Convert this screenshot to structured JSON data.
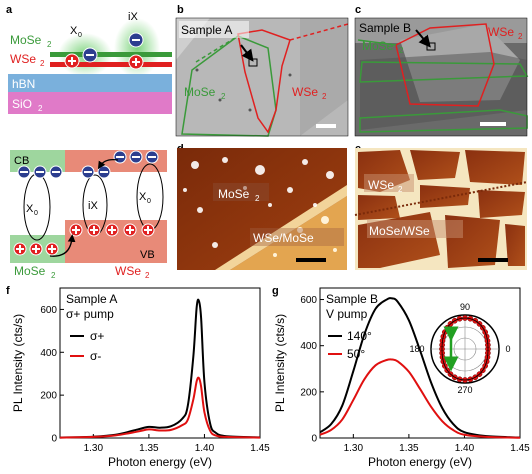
{
  "colors": {
    "mose2": "#3a9a3a",
    "wse2": "#e02020",
    "hbn": "#7ab0dc",
    "sio2": "#e07ac8",
    "cb_green": "#9ed69e",
    "cb_red": "#e88a78",
    "electron": "#2c3e8f",
    "hole": "#e02020",
    "sigma_plus": "#000000",
    "sigma_minus": "#e01010",
    "pol_140": "#000000",
    "pol_50": "#e01010"
  },
  "panel_a": {
    "letter": "a",
    "labels": {
      "mose2_top": "MoSe",
      "wse2_top": "WSe",
      "x0": "X",
      "ix": "iX",
      "hbn": "hBN",
      "sio2": "SiO",
      "cb": "CB",
      "vb": "VB",
      "x0_left": "X",
      "ix_mid": "iX",
      "x0_right": "X",
      "mose2_bottom": "MoSe",
      "wse2_bottom": "WSe"
    }
  },
  "panel_b": {
    "letter": "b",
    "sample": "Sample A",
    "mose2": "MoSe",
    "wse2": "WSe"
  },
  "panel_c": {
    "letter": "c",
    "sample": "Sample B",
    "mose2": "MoSe",
    "wse2": "WSe"
  },
  "panel_d": {
    "letter": "d",
    "mose2": "MoSe",
    "hetero": "WSe/MoSe"
  },
  "panel_e": {
    "letter": "e",
    "wse2": "WSe",
    "hetero": "MoSe/WSe"
  },
  "panel_f": {
    "letter": "f"
  },
  "panel_g": {
    "letter": "g"
  },
  "chart_data": [
    {
      "type": "line",
      "panel": "f",
      "annotations": [
        "Sample A",
        "σ+ pump"
      ],
      "xlabel": "Photon energy (eV)",
      "ylabel": "PL Intensity (cts/s)",
      "xlim": [
        1.27,
        1.45
      ],
      "ylim": [
        0,
        700
      ],
      "xticks": [
        1.3,
        1.35,
        1.4,
        1.45
      ],
      "yticks": [
        0,
        200,
        400,
        600
      ],
      "legend": "top-left",
      "series": [
        {
          "name": "σ+",
          "color": "#000000",
          "peak": 640,
          "x": [
            1.27,
            1.3,
            1.32,
            1.34,
            1.35,
            1.36,
            1.37,
            1.38,
            1.385,
            1.39,
            1.393,
            1.395,
            1.397,
            1.4,
            1.405,
            1.41,
            1.42,
            1.45
          ],
          "y": [
            2,
            6,
            15,
            40,
            52,
            48,
            55,
            90,
            150,
            380,
            610,
            640,
            560,
            260,
            70,
            25,
            8,
            3
          ]
        },
        {
          "name": "σ-",
          "color": "#e01010",
          "peak": 280,
          "x": [
            1.27,
            1.3,
            1.32,
            1.34,
            1.35,
            1.36,
            1.37,
            1.38,
            1.385,
            1.39,
            1.393,
            1.395,
            1.397,
            1.4,
            1.405,
            1.41,
            1.42,
            1.45
          ],
          "y": [
            2,
            5,
            12,
            30,
            40,
            35,
            38,
            60,
            85,
            180,
            265,
            280,
            240,
            120,
            35,
            12,
            5,
            2
          ]
        }
      ]
    },
    {
      "type": "line",
      "panel": "g",
      "annotations": [
        "Sample B",
        "V pump"
      ],
      "xlabel": "Photon energy (eV)",
      "ylabel": "PL Intensity (cts/s)",
      "xlim": [
        1.27,
        1.45
      ],
      "ylim": [
        0,
        650
      ],
      "xticks": [
        1.3,
        1.35,
        1.4,
        1.45
      ],
      "yticks": [
        0,
        200,
        400,
        600
      ],
      "legend": "top-left",
      "series": [
        {
          "name": "140°",
          "color": "#000000",
          "x": [
            1.27,
            1.28,
            1.29,
            1.3,
            1.31,
            1.32,
            1.33,
            1.335,
            1.34,
            1.35,
            1.36,
            1.37,
            1.38,
            1.39,
            1.4,
            1.42,
            1.45
          ],
          "y": [
            25,
            60,
            140,
            290,
            450,
            560,
            600,
            605,
            590,
            510,
            380,
            240,
            130,
            60,
            25,
            8,
            2
          ]
        },
        {
          "name": "50°",
          "color": "#e01010",
          "x": [
            1.27,
            1.28,
            1.29,
            1.3,
            1.31,
            1.32,
            1.33,
            1.335,
            1.34,
            1.35,
            1.36,
            1.37,
            1.38,
            1.39,
            1.4,
            1.42,
            1.45
          ],
          "y": [
            14,
            35,
            80,
            165,
            255,
            315,
            338,
            340,
            332,
            287,
            213,
            135,
            73,
            34,
            14,
            5,
            1
          ]
        }
      ],
      "inset": {
        "type": "polar",
        "angle_labels": [
          "90",
          "180",
          "0",
          "270"
        ]
      }
    }
  ]
}
